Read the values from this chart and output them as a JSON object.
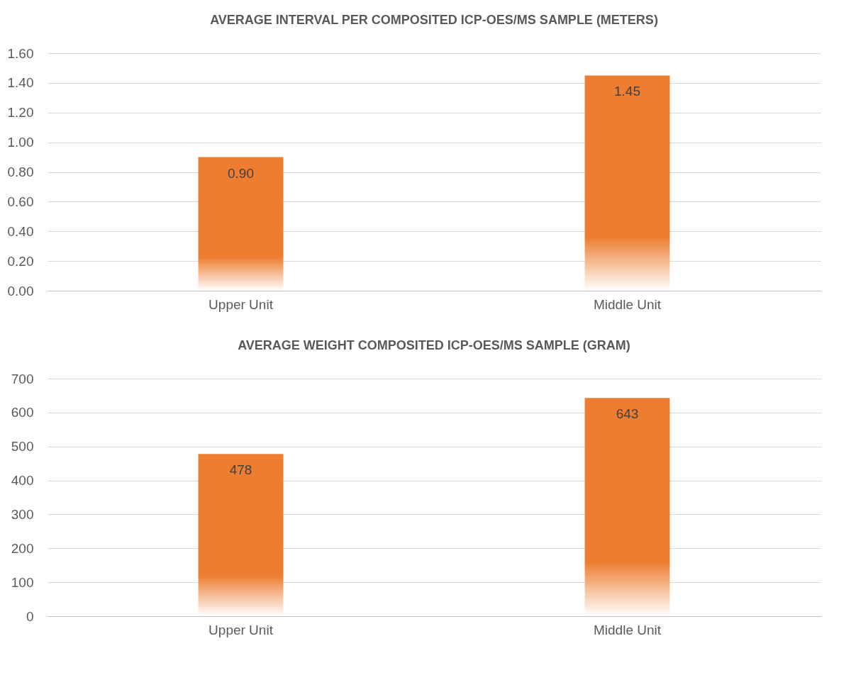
{
  "chart_data": [
    {
      "type": "bar",
      "title": "AVERAGE INTERVAL PER COMPOSITED ICP-OES/MS SAMPLE (METERS)",
      "categories": [
        "Upper Unit",
        "Middle Unit"
      ],
      "values": [
        0.9,
        1.45
      ],
      "value_labels": [
        "0.90",
        "1.45"
      ],
      "color": "#ed7d31",
      "ylim": [
        0,
        1.6
      ],
      "yticks": [
        {
          "value": 0,
          "label": "0.00"
        },
        {
          "value": 0.2,
          "label": "0.20"
        },
        {
          "value": 0.4,
          "label": "0.40"
        },
        {
          "value": 0.6,
          "label": "0.60"
        },
        {
          "value": 0.8,
          "label": "0.80"
        },
        {
          "value": 1,
          "label": "1.00"
        },
        {
          "value": 1.2,
          "label": "1.20"
        },
        {
          "value": 1.4,
          "label": "1.40"
        },
        {
          "value": 1.6,
          "label": "1.60"
        }
      ],
      "grid": "y"
    },
    {
      "type": "bar",
      "title": "AVERAGE WEIGHT COMPOSITED ICP-OES/MS SAMPLE (GRAM)",
      "categories": [
        "Upper Unit",
        "Middle Unit"
      ],
      "values": [
        478,
        643
      ],
      "data_labels": true,
      "color": "#ed7d31",
      "ylim": [
        0,
        700
      ],
      "yticks": [
        0,
        100,
        200,
        300,
        400,
        500,
        600,
        700
      ],
      "grid": "y"
    }
  ]
}
